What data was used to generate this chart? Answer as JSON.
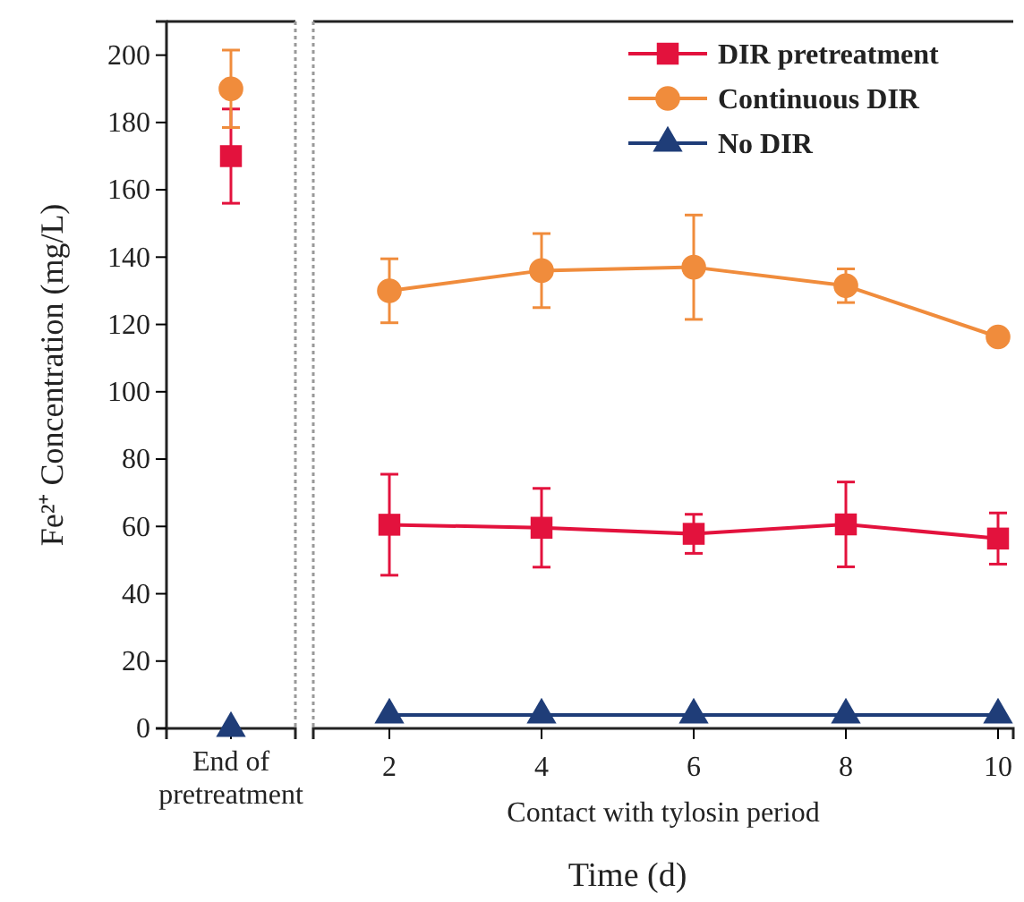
{
  "chart_data": [
    {
      "type": "scatter",
      "categories": [
        "End of pretreatment"
      ],
      "ylabel": "Fe²⁺ Concentration (mg/L)",
      "ylim": [
        0,
        210
      ],
      "yticks": [
        0,
        20,
        40,
        60,
        80,
        100,
        120,
        140,
        160,
        180,
        200
      ],
      "legend": false,
      "series": [
        {
          "color": "#e3123d",
          "marker": "square",
          "values": [
            170
          ],
          "errors": [
            14
          ]
        },
        {
          "color": "#f08c3c",
          "marker": "circle",
          "values": [
            190
          ],
          "errors": [
            11.5
          ]
        },
        {
          "color": "#1f3d78",
          "marker": "triangle",
          "values": [
            0
          ],
          "errors": [
            null
          ]
        }
      ]
    },
    {
      "type": "line",
      "x": [
        2,
        4,
        6,
        8,
        10
      ],
      "xlim": [
        1,
        10.2
      ],
      "xticks": [
        2,
        4,
        6,
        8,
        10
      ],
      "ylim": [
        0,
        210
      ],
      "tick_labels": "x",
      "xlabel": "Contact with tylosin period",
      "annotations": [
        "Time (d)"
      ],
      "legend": "top right",
      "series": [
        {
          "name": "DIR pretreatment",
          "color": "#e3123d",
          "marker": "square",
          "values": [
            60.5,
            59.6,
            57.8,
            60.6,
            56.4
          ],
          "errors": [
            15,
            11.7,
            5.8,
            12.6,
            7.6
          ]
        },
        {
          "name": "Continuous DIR",
          "color": "#f08c3c",
          "marker": "circle",
          "values": [
            130,
            136,
            137,
            131.5,
            116.3
          ],
          "errors": [
            9.5,
            11,
            15.5,
            5,
            null
          ]
        },
        {
          "name": "No DIR",
          "color": "#1f3d78",
          "marker": "triangle",
          "values": [
            4,
            4,
            4,
            4,
            4
          ],
          "errors": [
            null,
            null,
            null,
            null,
            null
          ]
        }
      ]
    }
  ]
}
